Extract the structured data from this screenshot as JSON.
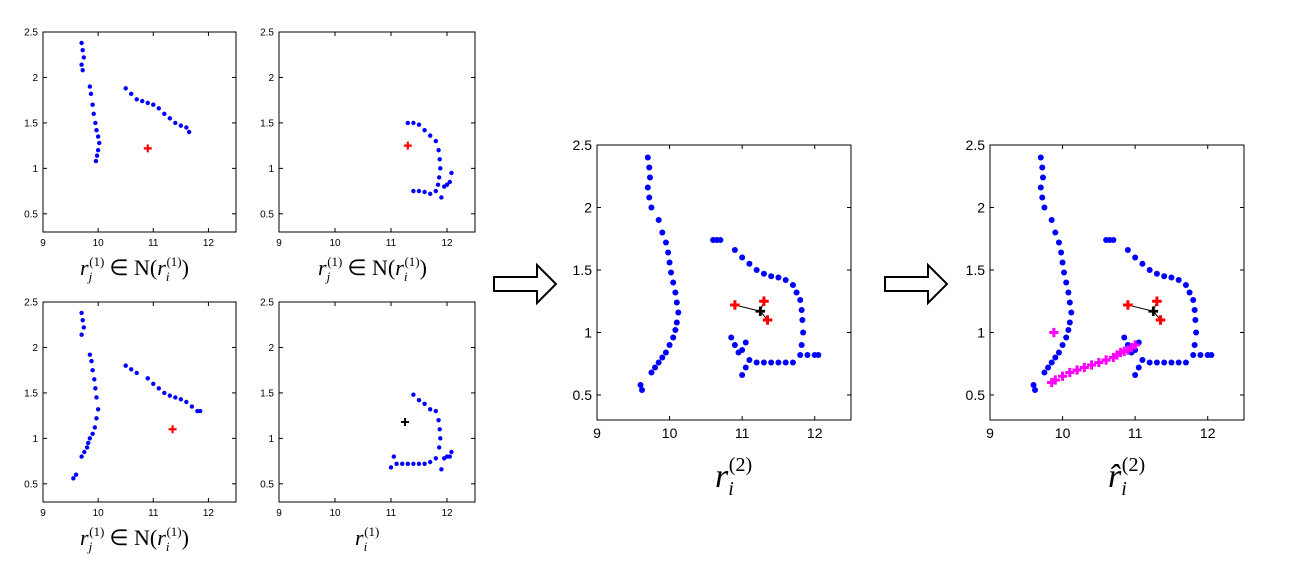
{
  "colors": {
    "points": "#0000ff",
    "query": "#ff0000",
    "center": "#000000",
    "added": "#ff00ff",
    "frame": "#000000",
    "arrow_fill": "#ffffff"
  },
  "axes": {
    "xticks": [
      "9",
      "10",
      "11",
      "12"
    ],
    "yticks": [
      "0.5",
      "1",
      "1.5",
      "2",
      "2.5"
    ],
    "xlim": [
      9,
      12.5
    ],
    "ylim": [
      0.3,
      2.5
    ]
  },
  "captions": {
    "neighbor_base": "r",
    "neighbor_sub": "j",
    "neighbor_sup": "(1)",
    "neighbor_rel": "∈ N(",
    "neighbor_base2": "r",
    "neighbor_sub2": "i",
    "neighbor_sup2": "(1)",
    "neighbor_close": ")",
    "self_base": "r",
    "self_sub": "i",
    "self_sup": "(1)",
    "merged_base": "r",
    "merged_sub": "i",
    "merged_sup": "(2)",
    "final_base": "r̂",
    "final_sub": "i",
    "final_sup": "(2)"
  },
  "chart_data": [
    {
      "type": "scatter",
      "panel": "top-left",
      "xlim": [
        9,
        12.5
      ],
      "ylim": [
        0.3,
        2.5
      ],
      "series": [
        {
          "role": "points",
          "x": [
            9.7,
            9.72,
            9.74,
            9.7,
            9.72,
            9.85,
            9.87,
            9.9,
            9.92,
            9.95,
            9.97,
            10.0,
            10.02,
            10.0,
            9.98,
            9.96,
            10.5,
            10.6,
            10.7,
            10.8,
            10.9,
            11.0,
            11.1,
            11.2,
            11.3,
            11.4,
            11.5,
            11.6,
            11.65
          ],
          "y": [
            2.38,
            2.3,
            2.22,
            2.14,
            2.08,
            1.9,
            1.82,
            1.7,
            1.6,
            1.5,
            1.42,
            1.35,
            1.28,
            1.2,
            1.14,
            1.08,
            1.88,
            1.82,
            1.76,
            1.74,
            1.72,
            1.7,
            1.66,
            1.6,
            1.55,
            1.5,
            1.47,
            1.45,
            1.4
          ]
        },
        {
          "role": "query",
          "x": [
            10.9
          ],
          "y": [
            1.22
          ]
        }
      ]
    },
    {
      "type": "scatter",
      "panel": "top-right",
      "xlim": [
        9,
        12.5
      ],
      "ylim": [
        0.3,
        2.5
      ],
      "series": [
        {
          "role": "points",
          "x": [
            11.3,
            11.4,
            11.5,
            11.6,
            11.7,
            11.8,
            11.85,
            11.87,
            11.88,
            11.86,
            11.84,
            11.8,
            11.7,
            11.6,
            11.5,
            11.4,
            11.95,
            12.0,
            12.05,
            12.08,
            11.9
          ],
          "y": [
            1.5,
            1.5,
            1.48,
            1.42,
            1.36,
            1.3,
            1.2,
            1.1,
            1.0,
            0.9,
            0.82,
            0.75,
            0.72,
            0.74,
            0.75,
            0.75,
            0.8,
            0.82,
            0.85,
            0.95,
            0.68
          ]
        },
        {
          "role": "query",
          "x": [
            11.3
          ],
          "y": [
            1.25
          ]
        }
      ]
    },
    {
      "type": "scatter",
      "panel": "bottom-left",
      "xlim": [
        9,
        12.5
      ],
      "ylim": [
        0.3,
        2.5
      ],
      "series": [
        {
          "role": "points",
          "x": [
            9.7,
            9.72,
            9.74,
            9.7,
            9.85,
            9.88,
            9.9,
            9.93,
            9.95,
            9.97,
            10.0,
            9.97,
            9.94,
            9.9,
            9.85,
            9.82,
            9.8,
            9.75,
            9.7,
            9.6,
            9.55,
            10.5,
            10.6,
            10.7,
            10.9,
            11.0,
            11.1,
            11.2,
            11.3,
            11.4,
            11.5,
            11.6,
            11.7,
            11.8,
            11.85
          ],
          "y": [
            2.38,
            2.3,
            2.22,
            2.14,
            1.92,
            1.85,
            1.75,
            1.65,
            1.55,
            1.45,
            1.32,
            1.22,
            1.12,
            1.05,
            1.0,
            0.95,
            0.9,
            0.85,
            0.8,
            0.6,
            0.56,
            1.8,
            1.76,
            1.72,
            1.66,
            1.6,
            1.55,
            1.5,
            1.47,
            1.45,
            1.43,
            1.4,
            1.35,
            1.3,
            1.3
          ]
        },
        {
          "role": "query",
          "x": [
            11.35
          ],
          "y": [
            1.1
          ]
        }
      ]
    },
    {
      "type": "scatter",
      "panel": "bottom-right",
      "xlim": [
        9,
        12.5
      ],
      "ylim": [
        0.3,
        2.5
      ],
      "series": [
        {
          "role": "points",
          "x": [
            11.4,
            11.5,
            11.6,
            11.7,
            11.8,
            11.85,
            11.87,
            11.88,
            11.86,
            11.8,
            11.7,
            11.6,
            11.5,
            11.4,
            11.3,
            11.2,
            11.1,
            11.05,
            11.0,
            11.95,
            12.0,
            12.05,
            12.08,
            11.9
          ],
          "y": [
            1.48,
            1.42,
            1.38,
            1.32,
            1.3,
            1.2,
            1.1,
            1.0,
            0.9,
            0.78,
            0.74,
            0.72,
            0.72,
            0.72,
            0.72,
            0.72,
            0.72,
            0.8,
            0.68,
            0.78,
            0.8,
            0.8,
            0.85,
            0.66
          ]
        },
        {
          "role": "center",
          "x": [
            11.25
          ],
          "y": [
            1.18
          ]
        }
      ]
    },
    {
      "type": "scatter",
      "panel": "merged",
      "xlim": [
        9,
        12.5
      ],
      "ylim": [
        0.3,
        2.5
      ],
      "series": [
        {
          "role": "points",
          "x": [
            9.7,
            9.72,
            9.73,
            9.7,
            9.72,
            9.75,
            9.85,
            9.9,
            9.95,
            9.98,
            10.0,
            10.02,
            10.05,
            10.08,
            10.1,
            10.12,
            10.1,
            10.08,
            10.05,
            10.0,
            9.95,
            9.9,
            9.85,
            9.8,
            9.75,
            9.6,
            9.62,
            10.6,
            10.65,
            10.7,
            10.9,
            11.0,
            11.1,
            11.2,
            11.3,
            11.4,
            11.5,
            11.6,
            11.7,
            11.75,
            11.8,
            11.82,
            11.83,
            11.84,
            11.82,
            11.8,
            11.9,
            12.0,
            12.05,
            11.7,
            11.6,
            11.5,
            11.4,
            11.3,
            11.2,
            11.1,
            11.05,
            11.0,
            10.95,
            10.9,
            10.85,
            11.0,
            11.05
          ],
          "y": [
            2.4,
            2.32,
            2.24,
            2.16,
            2.08,
            2.0,
            1.9,
            1.8,
            1.72,
            1.64,
            1.56,
            1.48,
            1.4,
            1.32,
            1.24,
            1.16,
            1.08,
            1.02,
            0.96,
            0.9,
            0.84,
            0.8,
            0.76,
            0.72,
            0.68,
            0.58,
            0.54,
            1.74,
            1.74,
            1.74,
            1.66,
            1.6,
            1.55,
            1.5,
            1.47,
            1.45,
            1.44,
            1.42,
            1.38,
            1.32,
            1.26,
            1.18,
            1.1,
            1.0,
            0.9,
            0.82,
            0.82,
            0.82,
            0.82,
            0.76,
            0.76,
            0.76,
            0.76,
            0.76,
            0.76,
            0.78,
            0.72,
            0.66,
            0.84,
            0.9,
            0.96,
            0.86,
            0.92
          ]
        },
        {
          "role": "query",
          "x": [
            10.9,
            11.3,
            11.35
          ],
          "y": [
            1.22,
            1.25,
            1.1
          ]
        },
        {
          "role": "center",
          "x": [
            11.25
          ],
          "y": [
            1.17
          ]
        }
      ]
    },
    {
      "type": "scatter",
      "panel": "final",
      "xlim": [
        9,
        12.5
      ],
      "ylim": [
        0.3,
        2.5
      ],
      "series": [
        {
          "role": "points",
          "x": [
            9.7,
            9.72,
            9.73,
            9.7,
            9.72,
            9.75,
            9.85,
            9.9,
            9.95,
            9.98,
            10.0,
            10.02,
            10.05,
            10.08,
            10.1,
            10.12,
            10.1,
            10.08,
            10.05,
            10.0,
            9.95,
            9.9,
            9.85,
            9.8,
            9.75,
            9.6,
            9.62,
            10.6,
            10.65,
            10.7,
            10.9,
            11.0,
            11.1,
            11.2,
            11.3,
            11.4,
            11.5,
            11.6,
            11.7,
            11.75,
            11.8,
            11.82,
            11.83,
            11.84,
            11.82,
            11.8,
            11.9,
            12.0,
            12.05,
            11.7,
            11.6,
            11.5,
            11.4,
            11.3,
            11.2,
            11.1,
            11.05,
            11.0,
            10.95,
            10.9,
            10.85,
            11.0,
            11.05
          ],
          "y": [
            2.4,
            2.32,
            2.24,
            2.16,
            2.08,
            2.0,
            1.9,
            1.8,
            1.72,
            1.64,
            1.56,
            1.48,
            1.4,
            1.32,
            1.24,
            1.16,
            1.08,
            1.02,
            0.96,
            0.9,
            0.84,
            0.8,
            0.76,
            0.72,
            0.68,
            0.58,
            0.54,
            1.74,
            1.74,
            1.74,
            1.66,
            1.6,
            1.55,
            1.5,
            1.47,
            1.45,
            1.44,
            1.42,
            1.38,
            1.32,
            1.26,
            1.18,
            1.1,
            1.0,
            0.9,
            0.82,
            0.82,
            0.82,
            0.82,
            0.76,
            0.76,
            0.76,
            0.76,
            0.76,
            0.76,
            0.78,
            0.72,
            0.66,
            0.84,
            0.9,
            0.96,
            0.86,
            0.92
          ]
        },
        {
          "role": "query",
          "x": [
            10.9,
            11.3,
            11.35
          ],
          "y": [
            1.22,
            1.25,
            1.1
          ]
        },
        {
          "role": "center",
          "x": [
            11.25
          ],
          "y": [
            1.17
          ]
        },
        {
          "role": "added",
          "x": [
            9.85,
            9.9,
            10.0,
            10.1,
            10.2,
            10.3,
            10.4,
            10.5,
            10.6,
            10.7,
            10.75,
            10.8,
            10.85,
            10.9,
            10.95,
            11.0,
            9.88
          ],
          "y": [
            0.6,
            0.62,
            0.65,
            0.68,
            0.7,
            0.72,
            0.74,
            0.76,
            0.78,
            0.8,
            0.82,
            0.84,
            0.85,
            0.86,
            0.88,
            0.9,
            1.0
          ]
        }
      ]
    }
  ]
}
